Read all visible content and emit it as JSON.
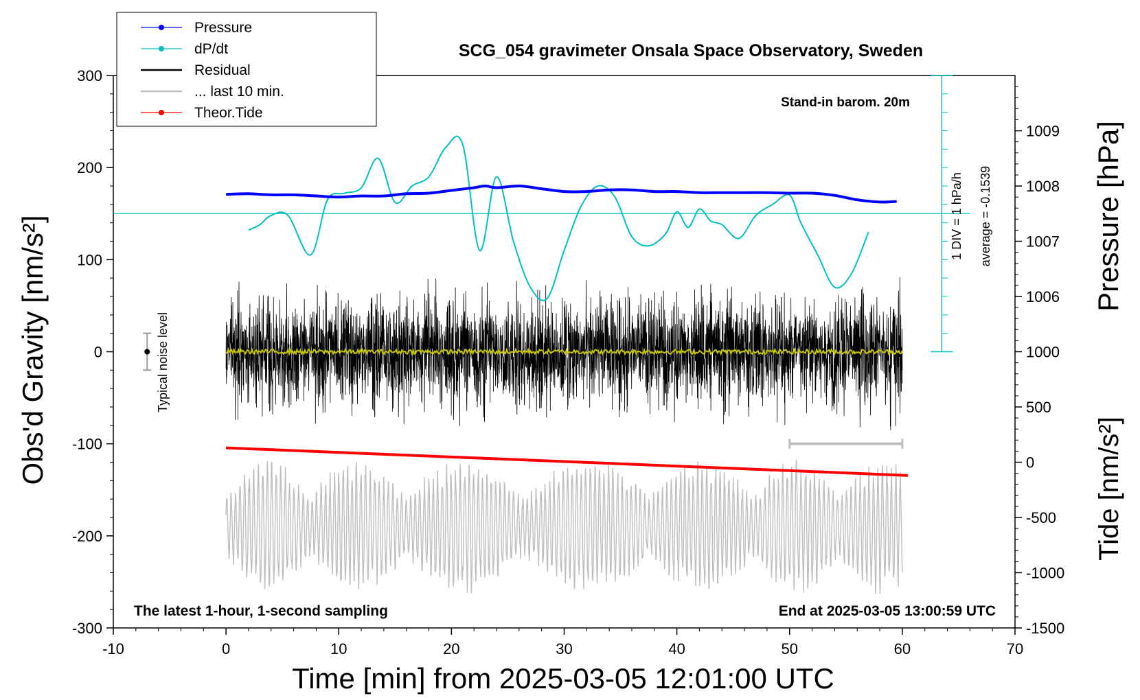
{
  "chart_data": {
    "type": "line",
    "title": "SCG_054 gravimeter Onsala Space Observatory, Sweden",
    "xlabel": "Time [min] from 2025-03-05 12:01:00 UTC",
    "ylabel_left": "Obs'd Gravity [nm/s²]",
    "ylabel_right_pressure": "Pressure [hPa]",
    "ylabel_right_tide": "Tide [nm/s²]",
    "xlim": [
      -10,
      70
    ],
    "ylim": [
      -300,
      300
    ],
    "x_ticks": [
      "-10",
      "0",
      "10",
      "20",
      "30",
      "40",
      "50",
      "60",
      "70"
    ],
    "y_ticks": [
      "-300",
      "-200",
      "-100",
      "0",
      "100",
      "200",
      "300"
    ],
    "pressure_ticks": [
      "1006",
      "1007",
      "1008",
      "1009"
    ],
    "tide_ticks": [
      "-1500",
      "-1000",
      "-500",
      "0",
      "500",
      "1000"
    ],
    "pressure_axis": {
      "value_at_gravity_0": 1005,
      "hpa_per_100_gravity": 1.667
    },
    "tide_axis": {
      "range": [
        -1500,
        1000
      ]
    },
    "legend": {
      "placement": "top-left",
      "entries": [
        {
          "label": "Pressure",
          "color": "#0000ff",
          "style": "line-dot"
        },
        {
          "label": "dP/dt",
          "color": "#00c0c0",
          "style": "line-dot"
        },
        {
          "label": "Residual",
          "color": "#000000",
          "style": "line"
        },
        {
          "label": "... last 10 min.",
          "color": "#bebebe",
          "style": "line"
        },
        {
          "label": "Theor.Tide",
          "color": "#ff0000",
          "style": "line-dot"
        }
      ]
    },
    "annotations": {
      "stand_in": "Stand-in barom. 20m",
      "div_label": "1 DIV = 1 hPa/h",
      "average_label": "average = -0.1539",
      "noise_label": "Typical noise level",
      "bottom_left": "The latest 1-hour, 1-second sampling",
      "bottom_right": "End at 2025-03-05 13:00:59 UTC"
    },
    "noise_level": {
      "x": -7,
      "y": 0,
      "half_range": 20
    },
    "last10_bracket": {
      "x_start": 50,
      "x_end": 60,
      "y": -100
    },
    "series": [
      {
        "name": "Pressure",
        "color": "#0000ff",
        "unit": "hPa",
        "x": [
          0,
          2,
          4,
          6,
          8,
          10,
          12,
          14,
          16,
          18,
          20,
          22,
          23,
          24,
          26,
          28,
          30,
          32,
          34,
          36,
          38,
          40,
          42,
          44,
          46,
          48,
          50,
          52,
          54,
          56,
          58,
          59.5
        ],
        "values": [
          1007.85,
          1007.86,
          1007.84,
          1007.84,
          1007.82,
          1007.8,
          1007.82,
          1007.82,
          1007.86,
          1007.87,
          1007.92,
          1007.97,
          1008.0,
          1007.97,
          1008.0,
          1007.95,
          1007.9,
          1007.9,
          1007.93,
          1007.93,
          1007.9,
          1007.9,
          1007.88,
          1007.88,
          1007.88,
          1007.88,
          1007.87,
          1007.87,
          1007.83,
          1007.75,
          1007.71,
          1007.72
        ]
      },
      {
        "name": "dP/dt",
        "color": "#00c0c0",
        "unit": "gravity-axis units (1 DIV = 1 hPa/h)",
        "x": [
          2,
          3,
          4,
          5.5,
          7.5,
          9,
          10.5,
          12,
          13.5,
          15,
          16.5,
          18,
          19.5,
          21,
          22.5,
          24,
          25.5,
          27,
          28.5,
          30,
          31.5,
          33,
          34.5,
          36,
          37.5,
          39,
          40,
          41,
          42,
          43,
          44,
          45.5,
          47,
          48.5,
          50,
          51,
          52.5,
          54,
          55.5,
          57
        ],
        "values": [
          132,
          138,
          148,
          148,
          105,
          165,
          172,
          178,
          210,
          162,
          180,
          190,
          222,
          225,
          110,
          190,
          120,
          70,
          58,
          110,
          158,
          180,
          168,
          125,
          115,
          128,
          152,
          135,
          155,
          142,
          138,
          123,
          148,
          160,
          170,
          140,
          105,
          70,
          85,
          130
        ]
      },
      {
        "name": "Residual",
        "color": "#000000",
        "x_range": [
          0,
          60
        ],
        "envelope_nm_s2": 90
      },
      {
        "name": "Residual smoothed",
        "color": "#c8c800",
        "x_range": [
          0,
          60
        ],
        "mean_nm_s2": 0
      },
      {
        "name": "... last 10 min.",
        "color": "#bebebe",
        "x_range": [
          0,
          60
        ],
        "center_nm_s2": -190,
        "envelope_nm_s2": 60
      },
      {
        "name": "Theor.Tide",
        "color": "#ff0000",
        "unit": "nm/s² (tide axis)",
        "x": [
          0,
          60.5
        ],
        "values": [
          130,
          -120
        ]
      }
    ]
  }
}
